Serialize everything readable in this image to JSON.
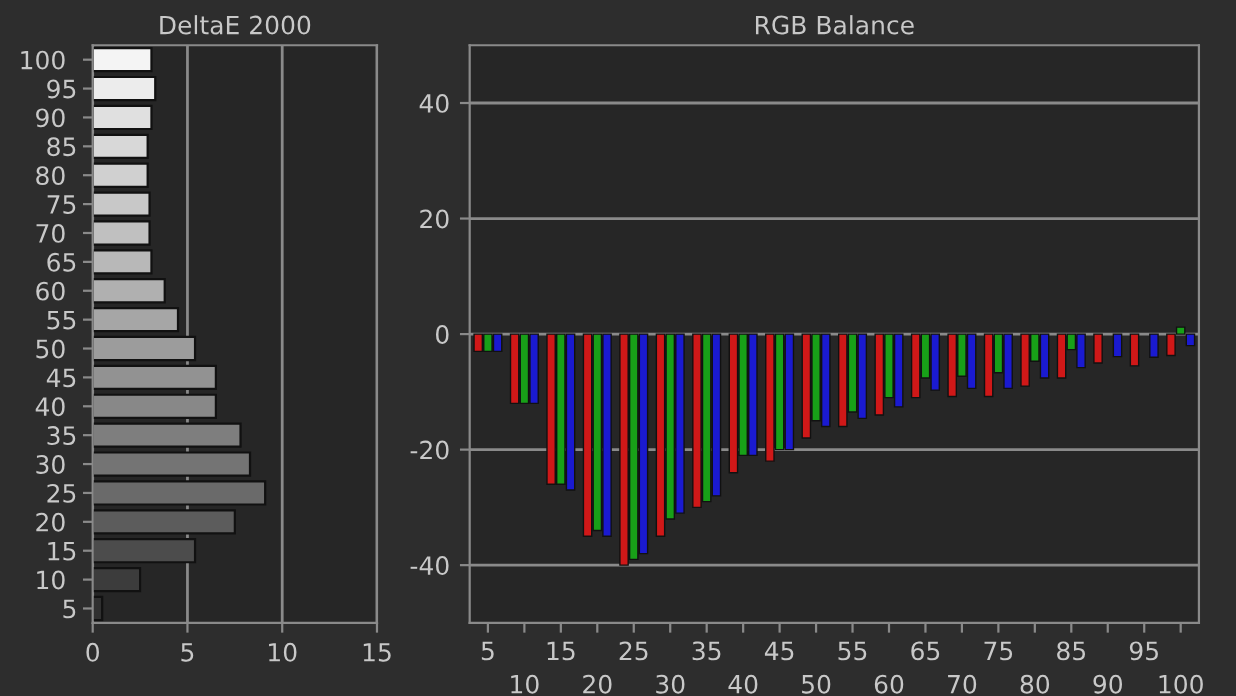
{
  "chart_data": [
    {
      "type": "bar",
      "title": "DeltaE 2000",
      "orientation": "horizontal",
      "categories": [
        "100",
        "95",
        "90",
        "85",
        "80",
        "75",
        "70",
        "65",
        "60",
        "55",
        "50",
        "45",
        "40",
        "35",
        "30",
        "25",
        "20",
        "15",
        "10",
        "5"
      ],
      "values": [
        3.1,
        3.3,
        3.1,
        2.9,
        2.9,
        3.0,
        3.0,
        3.1,
        3.8,
        4.5,
        5.4,
        6.5,
        6.5,
        7.8,
        8.3,
        9.1,
        7.5,
        5.4,
        2.5,
        0.5
      ],
      "colors": [
        "#f4f4f4",
        "#ececec",
        "#e0e0e0",
        "#d8d8d8",
        "#d0d0d0",
        "#c8c8c8",
        "#c0c0c0",
        "#b8b8b8",
        "#b0b0b0",
        "#a6a6a6",
        "#9c9c9c",
        "#929292",
        "#888888",
        "#7e7e7e",
        "#747474",
        "#6a6a6a",
        "#5c5c5c",
        "#4c4c4c",
        "#3c3c3c",
        "#303030"
      ],
      "xlim": [
        0,
        15
      ],
      "xticks": [
        0,
        5,
        10,
        15
      ],
      "grid": "x"
    },
    {
      "type": "bar",
      "title": "RGB Balance",
      "categories": [
        "5",
        "10",
        "15",
        "20",
        "25",
        "30",
        "35",
        "40",
        "45",
        "50",
        "55",
        "60",
        "65",
        "70",
        "75",
        "80",
        "85",
        "90",
        "95",
        "100"
      ],
      "series": [
        {
          "color": "#d01818",
          "values": [
            -3,
            -12,
            -26,
            -35,
            -40,
            -35,
            -30,
            -24,
            -22,
            -18,
            -16,
            -14,
            -11,
            -10.8,
            -10.8,
            -9,
            -7.6,
            -5,
            -5.5,
            -3.7
          ]
        },
        {
          "color": "#18a018",
          "values": [
            -3,
            -12,
            -26,
            -34,
            -39,
            -32,
            -29,
            -21,
            -20,
            -15,
            -13.5,
            -11,
            -7.6,
            -7.3,
            -6.7,
            -4.7,
            -2.7,
            null,
            null,
            1.2
          ]
        },
        {
          "color": "#1a1ad0",
          "values": [
            -3,
            -12,
            -27,
            -35,
            -38,
            -31,
            -28,
            -21,
            -20,
            -16,
            -14.6,
            -12.6,
            -9.7,
            -9.4,
            -9.4,
            -7.6,
            -5.8,
            -3.9,
            -4,
            -2
          ]
        }
      ],
      "ylim": [
        -50,
        50
      ],
      "yticks": [
        -40,
        -20,
        0,
        20,
        40
      ],
      "grid": "y"
    }
  ]
}
